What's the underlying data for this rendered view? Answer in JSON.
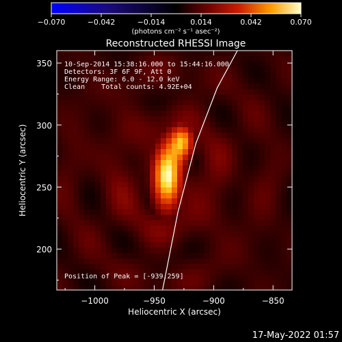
{
  "chart_data": {
    "type": "heatmap",
    "title": "Reconstructed RHESSI Image",
    "xlabel": "Heliocentric X (arcsec)",
    "ylabel": "Heliocentric Y (arcsec)",
    "xlim": [
      -1032,
      -834
    ],
    "ylim": [
      167,
      360
    ],
    "x_ticks": [
      -1000,
      -950,
      -900,
      -850
    ],
    "x_tick_labels": [
      "−1000",
      "−950",
      "−900",
      "−850"
    ],
    "y_ticks": [
      200,
      250,
      300,
      350
    ],
    "y_tick_labels": [
      "200",
      "250",
      "300",
      "350"
    ],
    "colorbar": {
      "min": -0.07,
      "max": 0.07,
      "ticks": [
        -0.07,
        -0.042,
        -0.014,
        0.014,
        0.042,
        0.07
      ],
      "tick_labels": [
        "−0.070",
        "−0.042",
        "−0.014",
        "0.014",
        "0.042",
        "0.070"
      ],
      "units_label": "(photons cm⁻² s⁻¹ asec⁻²)"
    },
    "sources": [
      {
        "x": -939,
        "y": 259,
        "peak": 0.07
      },
      {
        "x": -926,
        "y": 287,
        "peak": 0.05
      }
    ],
    "limb_curve": [
      [
        -943,
        167
      ],
      [
        -930,
        230
      ],
      [
        -915,
        285
      ],
      [
        -897,
        330
      ],
      [
        -880,
        360
      ]
    ],
    "annotations": [
      "10-Sep-2014 15:38:16.000 to 15:44:16.000",
      "Detectors: 3F 6F 9F, Att 0",
      "Energy Range: 6.0 - 12.0 keV",
      "Clean    Total counts: 4.92E+04",
      "Position of Peak = [-939,259]"
    ],
    "colors": {
      "background": "#000000",
      "limb": "#ffffff"
    }
  },
  "timestamp": "17-May-2022 01:57"
}
